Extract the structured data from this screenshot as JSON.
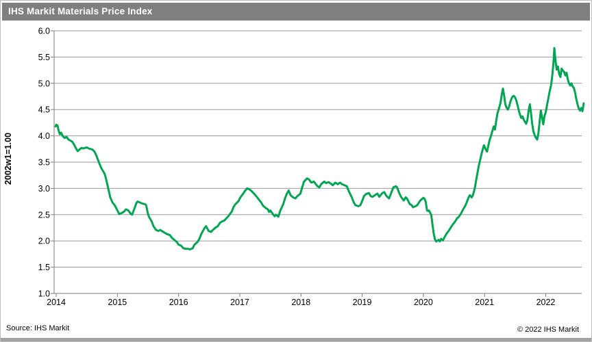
{
  "window": {
    "title": "IHS Markit Materials Price Index"
  },
  "footer": {
    "source": "Source: IHS Markit",
    "copyright": "© 2022  IHS Markit"
  },
  "colors": {
    "line_green": "#00a651",
    "titlebar_gray": "#7f7f7f",
    "gridline_gray": "#999999",
    "axis_gray": "#7d7d7d"
  },
  "chart_data": {
    "type": "line",
    "title": "IHS Markit Materials Price Index",
    "ylabel": "2002w1=1.00",
    "xlabel": "",
    "ylim": [
      1.0,
      6.0
    ],
    "xlim": [
      2013.966,
      2022.588
    ],
    "yticks": [
      "6.0",
      "5.5",
      "5.0",
      "4.5",
      "4.0",
      "3.5",
      "3.0",
      "2.5",
      "2.0",
      "1.5",
      "1.0"
    ],
    "xticks": [
      "2014",
      "2015",
      "2016",
      "2017",
      "2018",
      "2019",
      "2020",
      "2021",
      "2022"
    ],
    "grid": "horizontal",
    "legend": "none",
    "series": [
      {
        "name": "IHS Markit Materials Price Index (2002w1=1.00)",
        "color": "#00a651",
        "points": [
          [
            2013.99,
            4.18
          ],
          [
            2014.0,
            4.21
          ],
          [
            2014.02,
            4.2
          ],
          [
            2014.04,
            4.1
          ],
          [
            2014.06,
            4.03
          ],
          [
            2014.08,
            4.06
          ],
          [
            2014.11,
            3.99
          ],
          [
            2014.14,
            3.96
          ],
          [
            2014.17,
            3.98
          ],
          [
            2014.2,
            3.93
          ],
          [
            2014.23,
            3.91
          ],
          [
            2014.26,
            3.89
          ],
          [
            2014.29,
            3.84
          ],
          [
            2014.32,
            3.77
          ],
          [
            2014.35,
            3.71
          ],
          [
            2014.38,
            3.74
          ],
          [
            2014.41,
            3.77
          ],
          [
            2014.44,
            3.76
          ],
          [
            2014.47,
            3.77
          ],
          [
            2014.5,
            3.78
          ],
          [
            2014.53,
            3.76
          ],
          [
            2014.56,
            3.75
          ],
          [
            2014.59,
            3.74
          ],
          [
            2014.62,
            3.71
          ],
          [
            2014.65,
            3.64
          ],
          [
            2014.68,
            3.55
          ],
          [
            2014.71,
            3.46
          ],
          [
            2014.74,
            3.38
          ],
          [
            2014.77,
            3.32
          ],
          [
            2014.79,
            3.28
          ],
          [
            2014.81,
            3.2
          ],
          [
            2014.83,
            3.1
          ],
          [
            2014.85,
            3.0
          ],
          [
            2014.87,
            2.9
          ],
          [
            2014.88,
            2.84
          ],
          [
            2014.92,
            2.73
          ],
          [
            2014.96,
            2.67
          ],
          [
            2015.0,
            2.58
          ],
          [
            2015.03,
            2.51
          ],
          [
            2015.07,
            2.53
          ],
          [
            2015.11,
            2.56
          ],
          [
            2015.14,
            2.6
          ],
          [
            2015.18,
            2.58
          ],
          [
            2015.22,
            2.51
          ],
          [
            2015.24,
            2.5
          ],
          [
            2015.28,
            2.62
          ],
          [
            2015.31,
            2.72
          ],
          [
            2015.33,
            2.75
          ],
          [
            2015.37,
            2.73
          ],
          [
            2015.41,
            2.71
          ],
          [
            2015.45,
            2.7
          ],
          [
            2015.47,
            2.68
          ],
          [
            2015.5,
            2.51
          ],
          [
            2015.52,
            2.45
          ],
          [
            2015.56,
            2.37
          ],
          [
            2015.59,
            2.28
          ],
          [
            2015.63,
            2.21
          ],
          [
            2015.67,
            2.19
          ],
          [
            2015.7,
            2.21
          ],
          [
            2015.75,
            2.17
          ],
          [
            2015.78,
            2.15
          ],
          [
            2015.81,
            2.13
          ],
          [
            2015.86,
            2.11
          ],
          [
            2015.89,
            2.06
          ],
          [
            2015.93,
            2.02
          ],
          [
            2015.97,
            1.98
          ],
          [
            2016.0,
            1.93
          ],
          [
            2016.04,
            1.91
          ],
          [
            2016.08,
            1.86
          ],
          [
            2016.12,
            1.85
          ],
          [
            2016.15,
            1.85
          ],
          [
            2016.19,
            1.84
          ],
          [
            2016.23,
            1.86
          ],
          [
            2016.26,
            1.93
          ],
          [
            2016.31,
            1.98
          ],
          [
            2016.34,
            2.04
          ],
          [
            2016.37,
            2.13
          ],
          [
            2016.42,
            2.24
          ],
          [
            2016.45,
            2.28
          ],
          [
            2016.49,
            2.19
          ],
          [
            2016.53,
            2.17
          ],
          [
            2016.56,
            2.21
          ],
          [
            2016.6,
            2.25
          ],
          [
            2016.64,
            2.28
          ],
          [
            2016.68,
            2.35
          ],
          [
            2016.71,
            2.37
          ],
          [
            2016.75,
            2.39
          ],
          [
            2016.79,
            2.44
          ],
          [
            2016.82,
            2.48
          ],
          [
            2016.87,
            2.56
          ],
          [
            2016.9,
            2.65
          ],
          [
            2016.93,
            2.7
          ],
          [
            2016.98,
            2.76
          ],
          [
            2017.01,
            2.83
          ],
          [
            2017.05,
            2.89
          ],
          [
            2017.09,
            2.96
          ],
          [
            2017.12,
            3.0
          ],
          [
            2017.16,
            2.98
          ],
          [
            2017.2,
            2.94
          ],
          [
            2017.24,
            2.89
          ],
          [
            2017.27,
            2.85
          ],
          [
            2017.31,
            2.79
          ],
          [
            2017.35,
            2.73
          ],
          [
            2017.38,
            2.67
          ],
          [
            2017.43,
            2.62
          ],
          [
            2017.46,
            2.6
          ],
          [
            2017.48,
            2.55
          ],
          [
            2017.5,
            2.58
          ],
          [
            2017.54,
            2.51
          ],
          [
            2017.57,
            2.47
          ],
          [
            2017.59,
            2.5
          ],
          [
            2017.63,
            2.46
          ],
          [
            2017.66,
            2.57
          ],
          [
            2017.71,
            2.7
          ],
          [
            2017.74,
            2.81
          ],
          [
            2017.77,
            2.9
          ],
          [
            2017.8,
            2.96
          ],
          [
            2017.83,
            2.87
          ],
          [
            2017.87,
            2.83
          ],
          [
            2017.91,
            2.81
          ],
          [
            2017.94,
            2.85
          ],
          [
            2017.99,
            2.9
          ],
          [
            2018.02,
            3.02
          ],
          [
            2018.05,
            3.13
          ],
          [
            2018.1,
            3.19
          ],
          [
            2018.13,
            3.17
          ],
          [
            2018.17,
            3.11
          ],
          [
            2018.21,
            3.13
          ],
          [
            2018.27,
            3.04
          ],
          [
            2018.3,
            3.02
          ],
          [
            2018.33,
            3.08
          ],
          [
            2018.38,
            3.13
          ],
          [
            2018.41,
            3.1
          ],
          [
            2018.45,
            3.12
          ],
          [
            2018.49,
            3.09
          ],
          [
            2018.52,
            3.06
          ],
          [
            2018.56,
            3.11
          ],
          [
            2018.6,
            3.08
          ],
          [
            2018.64,
            3.11
          ],
          [
            2018.67,
            3.08
          ],
          [
            2018.71,
            3.06
          ],
          [
            2018.75,
            3.04
          ],
          [
            2018.78,
            2.95
          ],
          [
            2018.83,
            2.83
          ],
          [
            2018.86,
            2.74
          ],
          [
            2018.89,
            2.68
          ],
          [
            2018.94,
            2.66
          ],
          [
            2018.97,
            2.68
          ],
          [
            2019.0,
            2.76
          ],
          [
            2019.03,
            2.85
          ],
          [
            2019.06,
            2.89
          ],
          [
            2019.11,
            2.91
          ],
          [
            2019.14,
            2.85
          ],
          [
            2019.17,
            2.84
          ],
          [
            2019.22,
            2.88
          ],
          [
            2019.25,
            2.9
          ],
          [
            2019.28,
            2.84
          ],
          [
            2019.33,
            2.91
          ],
          [
            2019.36,
            2.93
          ],
          [
            2019.4,
            2.85
          ],
          [
            2019.44,
            2.81
          ],
          [
            2019.48,
            2.93
          ],
          [
            2019.51,
            3.02
          ],
          [
            2019.55,
            3.04
          ],
          [
            2019.57,
            3.02
          ],
          [
            2019.61,
            2.9
          ],
          [
            2019.64,
            2.83
          ],
          [
            2019.68,
            2.77
          ],
          [
            2019.71,
            2.83
          ],
          [
            2019.73,
            2.81
          ],
          [
            2019.78,
            2.7
          ],
          [
            2019.81,
            2.68
          ],
          [
            2019.83,
            2.64
          ],
          [
            2019.87,
            2.66
          ],
          [
            2019.9,
            2.68
          ],
          [
            2019.95,
            2.77
          ],
          [
            2019.98,
            2.8
          ],
          [
            2020.0,
            2.82
          ],
          [
            2020.02,
            2.8
          ],
          [
            2020.04,
            2.74
          ],
          [
            2020.06,
            2.58
          ],
          [
            2020.08,
            2.57
          ],
          [
            2020.09,
            2.58
          ],
          [
            2020.11,
            2.54
          ],
          [
            2020.13,
            2.49
          ],
          [
            2020.15,
            2.3
          ],
          [
            2020.17,
            2.13
          ],
          [
            2020.19,
            2.03
          ],
          [
            2020.21,
            1.99
          ],
          [
            2020.25,
            2.02
          ],
          [
            2020.27,
            1.99
          ],
          [
            2020.29,
            2.04
          ],
          [
            2020.32,
            2.01
          ],
          [
            2020.35,
            2.08
          ],
          [
            2020.38,
            2.14
          ],
          [
            2020.42,
            2.2
          ],
          [
            2020.45,
            2.26
          ],
          [
            2020.48,
            2.31
          ],
          [
            2020.52,
            2.37
          ],
          [
            2020.55,
            2.43
          ],
          [
            2020.58,
            2.46
          ],
          [
            2020.62,
            2.53
          ],
          [
            2020.65,
            2.6
          ],
          [
            2020.69,
            2.68
          ],
          [
            2020.72,
            2.77
          ],
          [
            2020.74,
            2.83
          ],
          [
            2020.76,
            2.87
          ],
          [
            2020.79,
            2.83
          ],
          [
            2020.81,
            2.87
          ],
          [
            2020.84,
            3.0
          ],
          [
            2020.87,
            3.2
          ],
          [
            2020.9,
            3.4
          ],
          [
            2020.93,
            3.55
          ],
          [
            2020.96,
            3.7
          ],
          [
            2020.99,
            3.82
          ],
          [
            2021.02,
            3.74
          ],
          [
            2021.04,
            3.7
          ],
          [
            2021.06,
            3.8
          ],
          [
            2021.08,
            3.91
          ],
          [
            2021.1,
            3.98
          ],
          [
            2021.13,
            4.1
          ],
          [
            2021.15,
            4.18
          ],
          [
            2021.17,
            4.12
          ],
          [
            2021.19,
            4.28
          ],
          [
            2021.21,
            4.42
          ],
          [
            2021.23,
            4.5
          ],
          [
            2021.26,
            4.62
          ],
          [
            2021.28,
            4.78
          ],
          [
            2021.3,
            4.9
          ],
          [
            2021.32,
            4.76
          ],
          [
            2021.34,
            4.6
          ],
          [
            2021.36,
            4.54
          ],
          [
            2021.38,
            4.5
          ],
          [
            2021.4,
            4.55
          ],
          [
            2021.42,
            4.64
          ],
          [
            2021.44,
            4.71
          ],
          [
            2021.46,
            4.75
          ],
          [
            2021.48,
            4.76
          ],
          [
            2021.5,
            4.73
          ],
          [
            2021.52,
            4.67
          ],
          [
            2021.54,
            4.58
          ],
          [
            2021.56,
            4.48
          ],
          [
            2021.58,
            4.4
          ],
          [
            2021.6,
            4.34
          ],
          [
            2021.62,
            4.37
          ],
          [
            2021.64,
            4.31
          ],
          [
            2021.66,
            4.27
          ],
          [
            2021.68,
            4.23
          ],
          [
            2021.7,
            4.3
          ],
          [
            2021.72,
            4.48
          ],
          [
            2021.74,
            4.6
          ],
          [
            2021.76,
            4.42
          ],
          [
            2021.78,
            4.22
          ],
          [
            2021.8,
            4.08
          ],
          [
            2021.83,
            3.98
          ],
          [
            2021.86,
            3.93
          ],
          [
            2021.88,
            4.05
          ],
          [
            2021.9,
            4.28
          ],
          [
            2021.92,
            4.48
          ],
          [
            2021.94,
            4.35
          ],
          [
            2021.96,
            4.22
          ],
          [
            2021.98,
            4.38
          ],
          [
            2022.0,
            4.45
          ],
          [
            2022.02,
            4.58
          ],
          [
            2022.04,
            4.7
          ],
          [
            2022.06,
            4.82
          ],
          [
            2022.09,
            4.98
          ],
          [
            2022.11,
            5.18
          ],
          [
            2022.13,
            5.45
          ],
          [
            2022.14,
            5.67
          ],
          [
            2022.16,
            5.42
          ],
          [
            2022.18,
            5.26
          ],
          [
            2022.2,
            5.32
          ],
          [
            2022.22,
            5.18
          ],
          [
            2022.24,
            5.12
          ],
          [
            2022.26,
            5.28
          ],
          [
            2022.28,
            5.24
          ],
          [
            2022.3,
            5.22
          ],
          [
            2022.32,
            5.15
          ],
          [
            2022.34,
            5.2
          ],
          [
            2022.36,
            5.08
          ],
          [
            2022.38,
            5.0
          ],
          [
            2022.4,
            4.96
          ],
          [
            2022.42,
            5.0
          ],
          [
            2022.44,
            4.94
          ],
          [
            2022.46,
            4.91
          ],
          [
            2022.48,
            4.82
          ],
          [
            2022.5,
            4.7
          ],
          [
            2022.52,
            4.6
          ],
          [
            2022.54,
            4.52
          ],
          [
            2022.56,
            4.48
          ],
          [
            2022.58,
            4.53
          ],
          [
            2022.6,
            4.47
          ],
          [
            2022.62,
            4.62
          ]
        ]
      }
    ]
  }
}
